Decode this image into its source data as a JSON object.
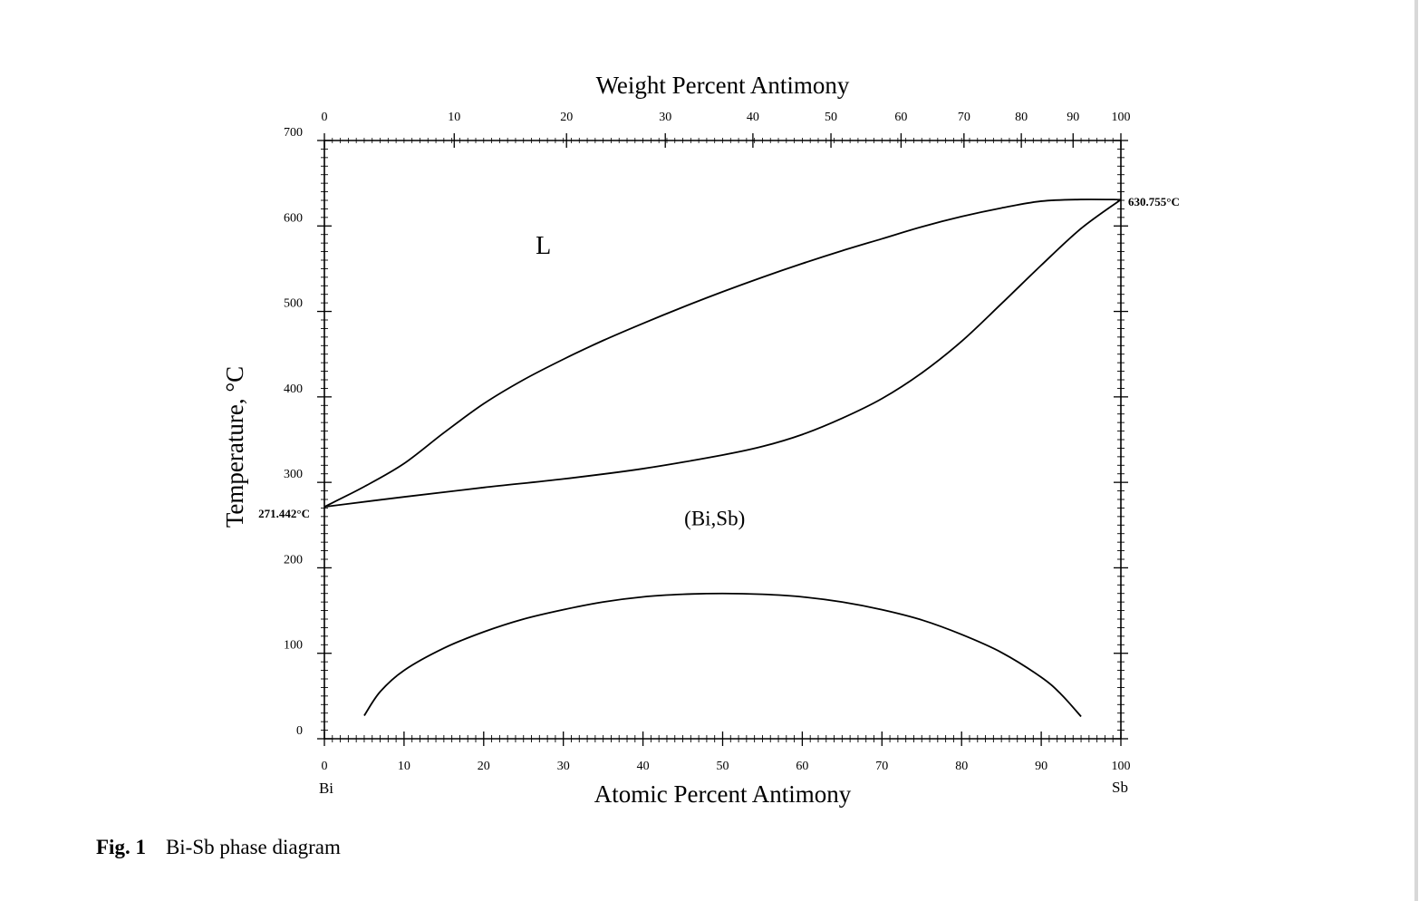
{
  "chart_data": {
    "type": "line",
    "title": "",
    "xlabel": "Atomic Percent Antimony",
    "x2label": "Weight Percent Antimony",
    "ylabel": "Temperature, °C",
    "xlim": [
      0,
      100
    ],
    "ylim": [
      0,
      700
    ],
    "x_ticks": [
      "0",
      "10",
      "20",
      "30",
      "40",
      "50",
      "60",
      "70",
      "80",
      "90",
      "100"
    ],
    "y_ticks": [
      "0",
      "100",
      "200",
      "300",
      "400",
      "500",
      "600",
      "700"
    ],
    "x2_ticks": [
      {
        "label": "0",
        "at": 0
      },
      {
        "label": "10",
        "at": 16.3
      },
      {
        "label": "20",
        "at": 30.4
      },
      {
        "label": "30",
        "at": 42.8
      },
      {
        "label": "40",
        "at": 53.8
      },
      {
        "label": "50",
        "at": 63.6
      },
      {
        "label": "60",
        "at": 72.4
      },
      {
        "label": "70",
        "at": 80.3
      },
      {
        "label": "80",
        "at": 87.5
      },
      {
        "label": "90",
        "at": 94.0
      },
      {
        "label": "100",
        "at": 100
      }
    ],
    "end_labels": {
      "left": "Bi",
      "right": "Sb"
    },
    "grid": false,
    "series": [
      {
        "points": [
          [
            0,
            271.4
          ],
          [
            5,
            295
          ],
          [
            10,
            322
          ],
          [
            15,
            358
          ],
          [
            20,
            392
          ],
          [
            25,
            420
          ],
          [
            30,
            444
          ],
          [
            35,
            466
          ],
          [
            40,
            486
          ],
          [
            45,
            505
          ],
          [
            50,
            523
          ],
          [
            55,
            540
          ],
          [
            60,
            556
          ],
          [
            65,
            571
          ],
          [
            70,
            585
          ],
          [
            75,
            599
          ],
          [
            80,
            611
          ],
          [
            85,
            621
          ],
          [
            90,
            629
          ],
          [
            95,
            631
          ],
          [
            100,
            630.8
          ]
        ]
      },
      {
        "points": [
          [
            0,
            271.4
          ],
          [
            10,
            283
          ],
          [
            20,
            294
          ],
          [
            30,
            304
          ],
          [
            40,
            316
          ],
          [
            50,
            332
          ],
          [
            55,
            342
          ],
          [
            60,
            356
          ],
          [
            65,
            375
          ],
          [
            70,
            398
          ],
          [
            75,
            428
          ],
          [
            80,
            465
          ],
          [
            85,
            509
          ],
          [
            90,
            554
          ],
          [
            95,
            597
          ],
          [
            100,
            630.8
          ]
        ]
      },
      {
        "points": [
          [
            5,
            27
          ],
          [
            7,
            55
          ],
          [
            10,
            80
          ],
          [
            15,
            106
          ],
          [
            20,
            125
          ],
          [
            25,
            140
          ],
          [
            30,
            151
          ],
          [
            35,
            160
          ],
          [
            40,
            166
          ],
          [
            45,
            169
          ],
          [
            50,
            170
          ],
          [
            55,
            169
          ],
          [
            60,
            166
          ],
          [
            65,
            160
          ],
          [
            70,
            151
          ],
          [
            75,
            139
          ],
          [
            80,
            122
          ],
          [
            85,
            101
          ],
          [
            90,
            72
          ],
          [
            92.5,
            52
          ],
          [
            95,
            26
          ]
        ]
      }
    ],
    "annotations": [
      {
        "text": "L",
        "x": 27.5,
        "y": 578
      },
      {
        "text": "(Bi,Sb)",
        "x": 49,
        "y": 258
      },
      {
        "text": "271.442°C",
        "x": 0,
        "y": 271.4
      },
      {
        "text": "630.755°C",
        "x": 100,
        "y": 630.8
      }
    ]
  },
  "caption": {
    "label": "Fig. 1",
    "text": "Bi-Sb phase diagram"
  }
}
